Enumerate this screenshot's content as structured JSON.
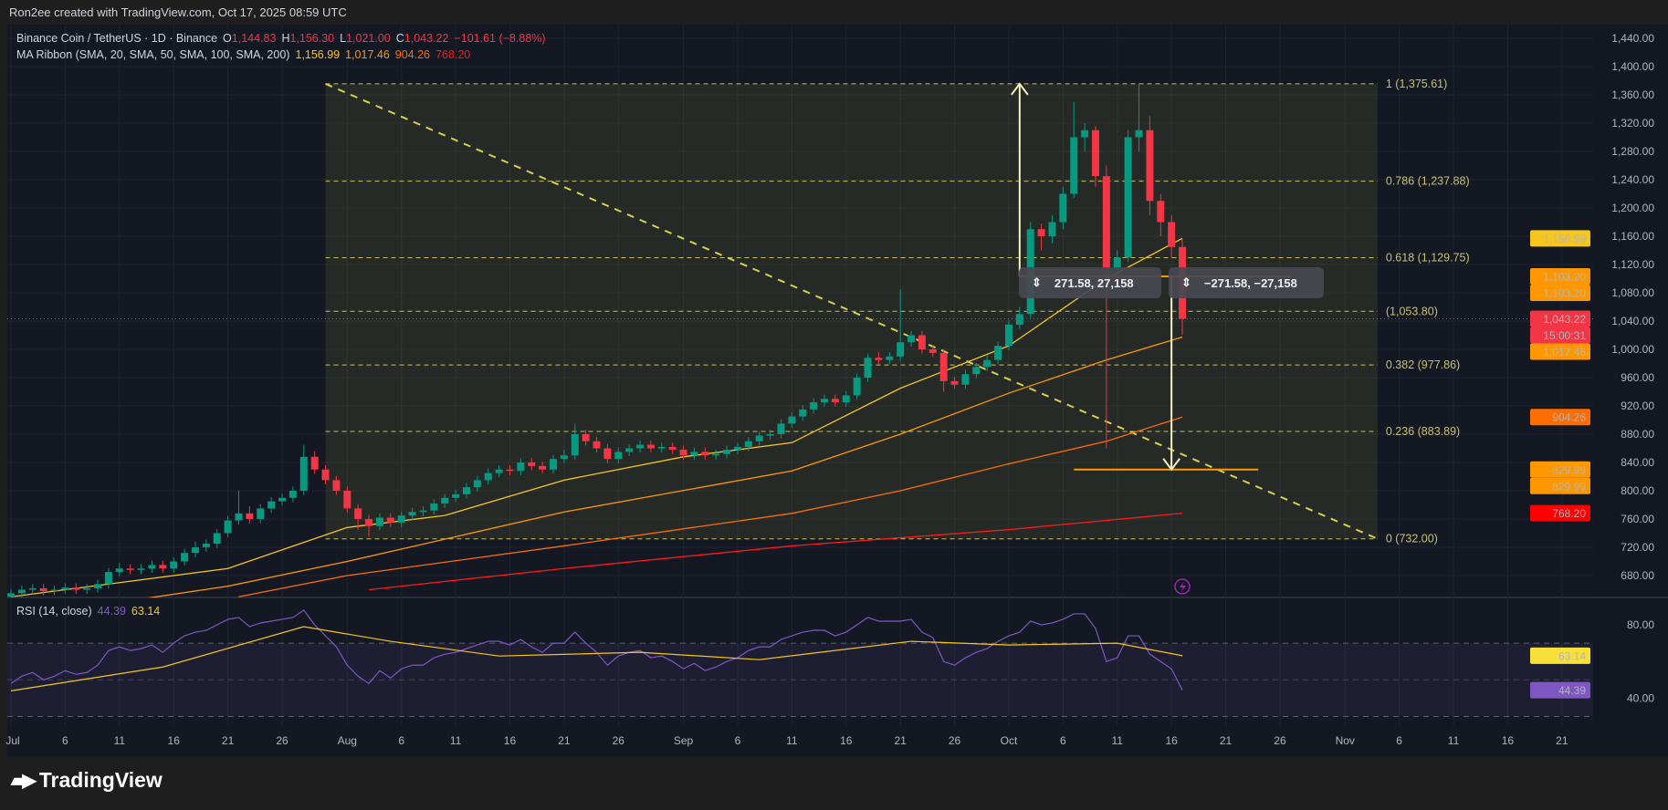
{
  "attribution": "Ron2ee created with TradingView.com, Oct 17, 2025 08:59 UTC",
  "legend": {
    "symbol": "Binance Coin / TetherUS · 1D · Binance",
    "o_label": "O",
    "o": "1,144.83",
    "h_label": "H",
    "h": "1,156.30",
    "l_label": "L",
    "l": "1,021.00",
    "c_label": "C",
    "c": "1,043.22",
    "change": "−101.61 (−8.88%)",
    "ma_title": "MA Ribbon (SMA, 20, SMA, 50, SMA, 100, SMA, 200)",
    "ma_values": [
      "1,156.99",
      "1,017.46",
      "904.26",
      "768.20"
    ],
    "rsi_title": "RSI (14, close)",
    "rsi_values": [
      "44.39",
      "63.14"
    ]
  },
  "watermark": "TradingView",
  "colors": {
    "background": "#141823",
    "up": "#089981",
    "down": "#f23645",
    "sma20": "#f7c61d",
    "sma50": "#ff9800",
    "sma100": "#ff6d00",
    "sma200": "#ff1a1a",
    "rsi": "#7e57c2",
    "rsi_ma": "#f7c61d",
    "fib": "#c8c070"
  },
  "measurements": [
    {
      "icon": "vertical-range-icon",
      "text": "271.58, 27,158"
    },
    {
      "icon": "vertical-range-icon",
      "text": "−271.58, −27,158"
    }
  ],
  "price_tags": [
    {
      "text": "1,156.99",
      "price": 1156.99,
      "bg": "#f7c61d",
      "fg": "#131722"
    },
    {
      "text": "1,103.20",
      "price": 1103.2,
      "bg": "#ff9800",
      "fg": "#131722"
    },
    {
      "text": "1,103.20",
      "price": 1103.2,
      "bg": "#ff9800",
      "fg": "#131722"
    },
    {
      "text": "1,043.22",
      "price": 1043.22,
      "bg": "#f23645",
      "fg": "#ffffff"
    },
    {
      "text": "15:00:31",
      "price": 1043.22,
      "bg": "#f23645",
      "fg": "#ffffff"
    },
    {
      "text": "1,017.46",
      "price": 1017.46,
      "bg": "#ff9800",
      "fg": "#131722"
    },
    {
      "text": "904.26",
      "price": 904.26,
      "bg": "#ff6d00",
      "fg": "#ffffff"
    },
    {
      "text": "829.99",
      "price": 829.99,
      "bg": "#ff9800",
      "fg": "#131722"
    },
    {
      "text": "829.99",
      "price": 829.99,
      "bg": "#ff9800",
      "fg": "#131722"
    },
    {
      "text": "768.20",
      "price": 768.2,
      "bg": "#ff0000",
      "fg": "#ffffff"
    }
  ],
  "rsi_tags": [
    {
      "text": "63.14",
      "value": 63.14,
      "bg": "#f7e03a",
      "fg": "#131722"
    },
    {
      "text": "44.39",
      "value": 44.39,
      "bg": "#7e57c2",
      "fg": "#ffffff"
    }
  ],
  "chart_data": {
    "type": "candlestick",
    "title": "Binance Coin / TetherUS · 1D · Binance",
    "start_date": "2025-07-01",
    "x_tick_labels": [
      "Jul",
      "6",
      "11",
      "16",
      "21",
      "26",
      "Aug",
      "6",
      "11",
      "16",
      "21",
      "26",
      "Sep",
      "6",
      "11",
      "16",
      "21",
      "26",
      "Oct",
      "6",
      "11",
      "16",
      "21",
      "26",
      "Nov",
      "6",
      "11",
      "16",
      "21"
    ],
    "x_tick_dates": [
      "2025-07-01",
      "2025-07-06",
      "2025-07-11",
      "2025-07-16",
      "2025-07-21",
      "2025-07-26",
      "2025-08-01",
      "2025-08-06",
      "2025-08-11",
      "2025-08-16",
      "2025-08-21",
      "2025-08-26",
      "2025-09-01",
      "2025-09-06",
      "2025-09-11",
      "2025-09-16",
      "2025-09-21",
      "2025-09-26",
      "2025-10-01",
      "2025-10-06",
      "2025-10-11",
      "2025-10-16",
      "2025-10-21",
      "2025-10-26",
      "2025-11-01",
      "2025-11-06",
      "2025-11-11",
      "2025-11-16",
      "2025-11-21"
    ],
    "y_tick_labels": [
      "1,440.00",
      "1,400.00",
      "1,360.00",
      "1,320.00",
      "1,280.00",
      "1,240.00",
      "1,200.00",
      "1,160.00",
      "1,120.00",
      "1,080.00",
      "1,040.00",
      "1,000.00",
      "960.00",
      "920.00",
      "880.00",
      "840.00",
      "800.00",
      "760.00",
      "720.00",
      "680.00"
    ],
    "y_ticks": [
      1440,
      1400,
      1360,
      1320,
      1280,
      1240,
      1200,
      1160,
      1120,
      1080,
      1040,
      1000,
      960,
      920,
      880,
      840,
      800,
      760,
      720,
      680
    ],
    "ylim": [
      660,
      1460
    ],
    "last_price": 1043.22,
    "ohlc": [
      [
        650,
        661,
        644,
        655
      ],
      [
        655,
        666,
        649,
        660
      ],
      [
        660,
        668,
        654,
        662
      ],
      [
        662,
        668,
        652,
        658
      ],
      [
        658,
        666,
        652,
        660
      ],
      [
        660,
        669,
        654,
        663
      ],
      [
        663,
        669,
        654,
        660
      ],
      [
        660,
        668,
        654,
        662
      ],
      [
        662,
        674,
        656,
        668
      ],
      [
        668,
        691,
        662,
        685
      ],
      [
        685,
        698,
        679,
        690
      ],
      [
        690,
        696,
        682,
        688
      ],
      [
        688,
        696,
        682,
        690
      ],
      [
        690,
        701,
        684,
        695
      ],
      [
        695,
        701,
        684,
        690
      ],
      [
        690,
        706,
        684,
        700
      ],
      [
        700,
        718,
        694,
        712
      ],
      [
        712,
        728,
        706,
        720
      ],
      [
        720,
        731,
        714,
        725
      ],
      [
        725,
        746,
        719,
        740
      ],
      [
        740,
        764,
        734,
        758
      ],
      [
        758,
        800,
        752,
        768
      ],
      [
        768,
        778,
        754,
        760
      ],
      [
        760,
        781,
        754,
        775
      ],
      [
        775,
        791,
        769,
        785
      ],
      [
        785,
        796,
        779,
        790
      ],
      [
        790,
        806,
        784,
        800
      ],
      [
        800,
        865,
        794,
        848
      ],
      [
        848,
        856,
        824,
        830
      ],
      [
        830,
        836,
        809,
        815
      ],
      [
        815,
        821,
        794,
        800
      ],
      [
        800,
        806,
        769,
        775
      ],
      [
        775,
        781,
        745,
        760
      ],
      [
        760,
        766,
        735,
        750
      ],
      [
        750,
        768,
        744,
        762
      ],
      [
        762,
        768,
        749,
        755
      ],
      [
        755,
        771,
        749,
        765
      ],
      [
        765,
        776,
        759,
        770
      ],
      [
        770,
        778,
        764,
        772
      ],
      [
        772,
        788,
        766,
        782
      ],
      [
        782,
        796,
        776,
        790
      ],
      [
        790,
        801,
        784,
        795
      ],
      [
        795,
        811,
        789,
        805
      ],
      [
        805,
        821,
        799,
        815
      ],
      [
        815,
        831,
        809,
        825
      ],
      [
        825,
        836,
        819,
        830
      ],
      [
        830,
        836,
        822,
        828
      ],
      [
        828,
        846,
        822,
        840
      ],
      [
        840,
        846,
        829,
        835
      ],
      [
        835,
        841,
        824,
        830
      ],
      [
        830,
        851,
        824,
        845
      ],
      [
        845,
        858,
        839,
        850
      ],
      [
        850,
        895,
        844,
        880
      ],
      [
        880,
        886,
        864,
        870
      ],
      [
        870,
        876,
        854,
        860
      ],
      [
        860,
        866,
        839,
        845
      ],
      [
        845,
        861,
        839,
        855
      ],
      [
        855,
        866,
        849,
        860
      ],
      [
        860,
        871,
        854,
        865
      ],
      [
        865,
        871,
        854,
        860
      ],
      [
        860,
        868,
        854,
        862
      ],
      [
        862,
        868,
        852,
        858
      ],
      [
        858,
        864,
        844,
        850
      ],
      [
        850,
        861,
        844,
        855
      ],
      [
        855,
        861,
        844,
        850
      ],
      [
        850,
        858,
        844,
        852
      ],
      [
        852,
        864,
        846,
        858
      ],
      [
        858,
        868,
        852,
        862
      ],
      [
        862,
        876,
        856,
        870
      ],
      [
        870,
        884,
        864,
        878
      ],
      [
        878,
        886,
        872,
        880
      ],
      [
        880,
        901,
        874,
        895
      ],
      [
        895,
        911,
        889,
        905
      ],
      [
        905,
        921,
        899,
        915
      ],
      [
        915,
        931,
        909,
        925
      ],
      [
        925,
        936,
        919,
        930
      ],
      [
        930,
        936,
        919,
        925
      ],
      [
        925,
        941,
        919,
        935
      ],
      [
        935,
        966,
        929,
        960
      ],
      [
        960,
        994,
        954,
        988
      ],
      [
        988,
        996,
        979,
        985
      ],
      [
        985,
        996,
        979,
        990
      ],
      [
        990,
        1085,
        984,
        1010
      ],
      [
        1010,
        1026,
        1004,
        1020
      ],
      [
        1020,
        1026,
        994,
        1000
      ],
      [
        1000,
        1006,
        989,
        995
      ],
      [
        995,
        1001,
        940,
        955
      ],
      [
        955,
        961,
        944,
        950
      ],
      [
        950,
        971,
        944,
        965
      ],
      [
        965,
        981,
        959,
        975
      ],
      [
        975,
        991,
        969,
        985
      ],
      [
        985,
        1011,
        979,
        1005
      ],
      [
        1005,
        1041,
        999,
        1035
      ],
      [
        1035,
        1060,
        1029,
        1050
      ],
      [
        1050,
        1180,
        1044,
        1170
      ],
      [
        1170,
        1178,
        1140,
        1160
      ],
      [
        1160,
        1190,
        1150,
        1180
      ],
      [
        1180,
        1230,
        1170,
        1220
      ],
      [
        1220,
        1350,
        1214,
        1300
      ],
      [
        1300,
        1320,
        1280,
        1310
      ],
      [
        1310,
        1316,
        1230,
        1245
      ],
      [
        1245,
        1260,
        860,
        1115
      ],
      [
        1115,
        1140,
        1100,
        1130
      ],
      [
        1130,
        1310,
        1124,
        1300
      ],
      [
        1300,
        1375,
        1280,
        1310
      ],
      [
        1310,
        1330,
        1190,
        1210
      ],
      [
        1210,
        1220,
        1160,
        1180
      ],
      [
        1180,
        1190,
        1130,
        1144.83
      ],
      [
        1144.83,
        1156.3,
        1021.0,
        1043.22
      ]
    ],
    "moving_averages": [
      {
        "name": "SMA 20",
        "points": [
          [
            "2025-07-01",
            650
          ],
          [
            "2025-07-21",
            690
          ],
          [
            "2025-08-01",
            748
          ],
          [
            "2025-08-10",
            765
          ],
          [
            "2025-08-21",
            815
          ],
          [
            "2025-09-01",
            848
          ],
          [
            "2025-09-11",
            868
          ],
          [
            "2025-09-21",
            945
          ],
          [
            "2025-10-01",
            1005
          ],
          [
            "2025-10-10",
            1100
          ],
          [
            "2025-10-17",
            1156.99
          ]
        ]
      },
      {
        "name": "SMA 50",
        "points": [
          [
            "2025-07-10",
            640
          ],
          [
            "2025-07-21",
            665
          ],
          [
            "2025-08-01",
            700
          ],
          [
            "2025-08-21",
            770
          ],
          [
            "2025-09-11",
            828
          ],
          [
            "2025-09-21",
            880
          ],
          [
            "2025-10-01",
            938
          ],
          [
            "2025-10-10",
            985
          ],
          [
            "2025-10-17",
            1017.46
          ]
        ]
      },
      {
        "name": "SMA 100",
        "points": [
          [
            "2025-07-22",
            650
          ],
          [
            "2025-08-01",
            680
          ],
          [
            "2025-08-21",
            722
          ],
          [
            "2025-09-11",
            768
          ],
          [
            "2025-09-21",
            800
          ],
          [
            "2025-10-01",
            838
          ],
          [
            "2025-10-10",
            870
          ],
          [
            "2025-10-17",
            904.26
          ]
        ]
      },
      {
        "name": "SMA 200",
        "points": [
          [
            "2025-08-03",
            660
          ],
          [
            "2025-08-21",
            690
          ],
          [
            "2025-09-11",
            722
          ],
          [
            "2025-10-01",
            745
          ],
          [
            "2025-10-17",
            768.2
          ]
        ]
      }
    ],
    "fibonacci": {
      "levels": [
        {
          "label": "1 (1,375.61)",
          "price": 1375.61
        },
        {
          "label": "0.786 (1,237.88)",
          "price": 1237.88
        },
        {
          "label": "0.618 (1,129.75)",
          "price": 1129.75
        },
        {
          "label": "(1,053.80)",
          "price": 1053.8
        },
        {
          "label": "0.382 (977.86)",
          "price": 977.86
        },
        {
          "label": "0.236 (883.89)",
          "price": 883.89
        },
        {
          "label": "0 (732.00)",
          "price": 732.0
        }
      ],
      "start_date": "2025-07-30",
      "end_date": "2025-11-04"
    },
    "trendline": {
      "from": [
        "2025-07-30",
        1375.61
      ],
      "to": [
        "2025-11-04",
        732.0
      ]
    },
    "horizontal_lines": [
      {
        "price": 1103.2,
        "from": "2025-10-02",
        "to": "2025-10-27"
      },
      {
        "price": 829.99,
        "from": "2025-10-07",
        "to": "2025-10-24"
      }
    ],
    "arrows": [
      {
        "date": "2025-10-02",
        "from": 1103.2,
        "to": 1375.61
      },
      {
        "date": "2025-10-16",
        "from": 1103.2,
        "to": 829.99
      }
    ],
    "rsi": {
      "ylim": [
        20,
        90
      ],
      "y_ticks": [
        80,
        40
      ],
      "y_tick_labels": [
        "80.00",
        "40.00"
      ],
      "bands": [
        30,
        70
      ],
      "values": [
        48,
        52,
        54,
        50,
        52,
        55,
        53,
        54,
        58,
        66,
        68,
        66,
        67,
        69,
        65,
        70,
        74,
        76,
        77,
        80,
        83,
        84,
        79,
        81,
        82,
        83,
        84,
        88,
        80,
        74,
        68,
        58,
        52,
        48,
        55,
        51,
        56,
        58,
        58,
        62,
        64,
        65,
        67,
        69,
        71,
        71,
        69,
        72,
        68,
        65,
        70,
        70,
        76,
        70,
        65,
        58,
        63,
        65,
        66,
        62,
        63,
        60,
        56,
        59,
        55,
        57,
        60,
        62,
        66,
        68,
        68,
        72,
        74,
        76,
        77,
        77,
        74,
        76,
        80,
        84,
        82,
        82,
        82,
        83,
        76,
        73,
        60,
        58,
        62,
        65,
        67,
        71,
        74,
        76,
        82,
        80,
        81,
        83,
        86,
        86,
        78,
        60,
        62,
        74,
        74,
        64,
        60,
        56,
        44.39
      ],
      "ma_points": [
        [
          "2025-07-01",
          44
        ],
        [
          "2025-07-15",
          57
        ],
        [
          "2025-07-28",
          79
        ],
        [
          "2025-08-05",
          71
        ],
        [
          "2025-08-15",
          63
        ],
        [
          "2025-08-28",
          65
        ],
        [
          "2025-09-08",
          61
        ],
        [
          "2025-09-22",
          71
        ],
        [
          "2025-10-01",
          69
        ],
        [
          "2025-10-11",
          70
        ],
        [
          "2025-10-17",
          63.14
        ]
      ]
    }
  }
}
